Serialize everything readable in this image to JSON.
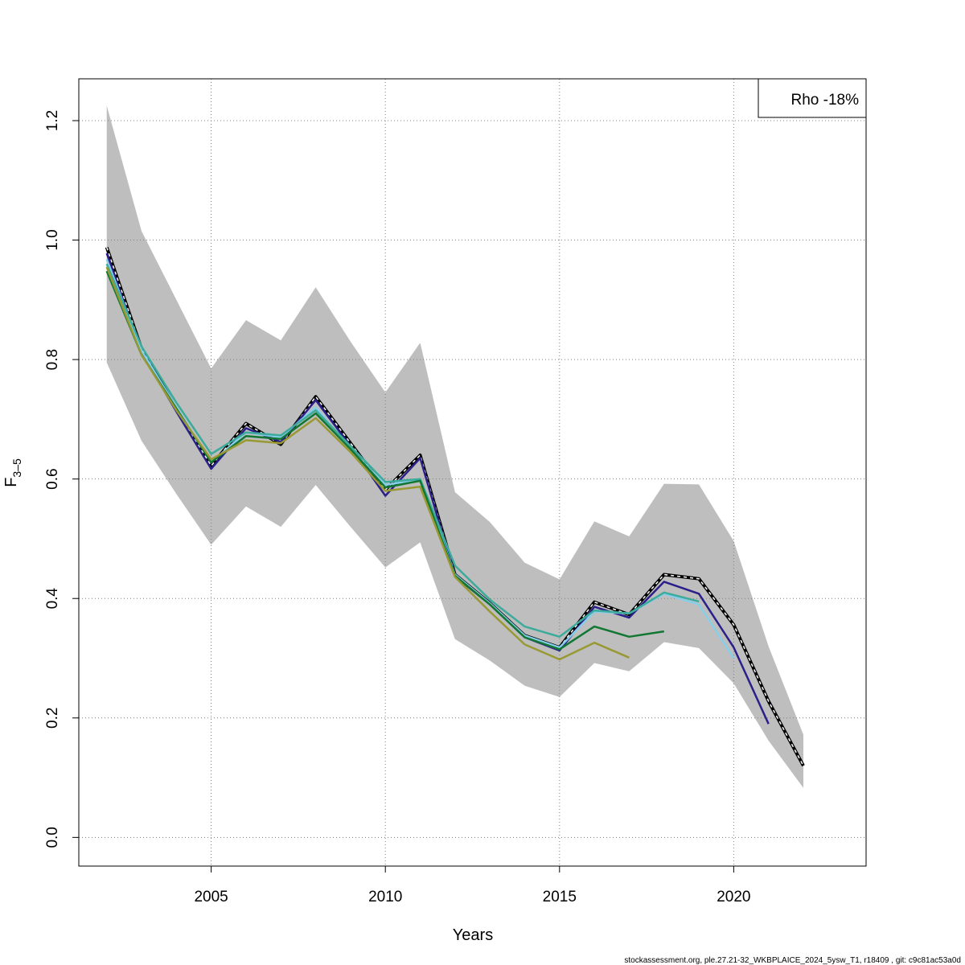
{
  "chart_data": {
    "type": "line",
    "xlabel": "Years",
    "ylabel": "F",
    "ylabel_subscript": "3–5",
    "xlim": [
      2001.2,
      2023.8
    ],
    "ylim": [
      -0.048,
      1.27
    ],
    "x_ticks": [
      2005,
      2010,
      2015,
      2020
    ],
    "y_ticks": [
      0.0,
      0.2,
      0.4,
      0.6,
      0.8,
      1.0,
      1.2
    ],
    "y_tick_labels": [
      "0.0",
      "0.2",
      "0.4",
      "0.6",
      "0.8",
      "1.0",
      "1.2"
    ],
    "grid": true,
    "legend": {
      "placement": "top-right",
      "text": "Rho -18%"
    },
    "footer": "stockassessment.org, ple.27.21-32_WKBPLAICE_2024_5ysw_T1, r18409 , git: c9c81ac53a0d",
    "confidence_band": {
      "color": "#bebebe",
      "x": [
        2002,
        2003,
        2004,
        2005,
        2006,
        2007,
        2008,
        2009,
        2010,
        2011,
        2012,
        2013,
        2014,
        2015,
        2016,
        2017,
        2018,
        2019,
        2020,
        2021,
        2022
      ],
      "upper": [
        1.225,
        1.015,
        0.9,
        0.785,
        0.866,
        0.832,
        0.921,
        0.83,
        0.745,
        0.828,
        0.578,
        0.528,
        0.46,
        0.432,
        0.529,
        0.504,
        0.592,
        0.591,
        0.496,
        0.32,
        0.172
      ],
      "lower": [
        0.795,
        0.664,
        0.575,
        0.49,
        0.554,
        0.52,
        0.59,
        0.52,
        0.452,
        0.494,
        0.332,
        0.296,
        0.254,
        0.235,
        0.292,
        0.278,
        0.327,
        0.317,
        0.258,
        0.162,
        0.083
      ]
    },
    "series": [
      {
        "color": "#000000",
        "dashed": true,
        "highlight": true,
        "x": [
          2002,
          2003,
          2004,
          2005,
          2006,
          2007,
          2008,
          2009,
          2010,
          2011,
          2012,
          2013,
          2014,
          2015,
          2016,
          2017,
          2018,
          2019,
          2020,
          2021,
          2022
        ],
        "values": [
          0.988,
          0.818,
          0.717,
          0.622,
          0.693,
          0.658,
          0.738,
          0.66,
          0.582,
          0.64,
          0.44,
          0.392,
          0.338,
          0.318,
          0.394,
          0.373,
          0.44,
          0.433,
          0.356,
          0.228,
          0.12
        ]
      },
      {
        "color": "#2b1f8a",
        "x": [
          2002,
          2003,
          2004,
          2005,
          2006,
          2007,
          2008,
          2009,
          2010,
          2011,
          2012,
          2013,
          2014,
          2015,
          2016,
          2017,
          2018,
          2019,
          2020,
          2021
        ],
        "values": [
          0.978,
          0.812,
          0.713,
          0.617,
          0.685,
          0.662,
          0.732,
          0.655,
          0.572,
          0.635,
          0.437,
          0.39,
          0.335,
          0.313,
          0.386,
          0.368,
          0.428,
          0.408,
          0.318,
          0.19
        ]
      },
      {
        "color": "#87ceeb",
        "x": [
          2002,
          2003,
          2004,
          2005,
          2006,
          2007,
          2008,
          2009,
          2010,
          2011,
          2012,
          2013,
          2014,
          2015,
          2016,
          2017,
          2018,
          2019,
          2020
        ],
        "values": [
          0.968,
          0.815,
          0.72,
          0.628,
          0.678,
          0.67,
          0.72,
          0.65,
          0.59,
          0.6,
          0.44,
          0.392,
          0.338,
          0.318,
          0.378,
          0.375,
          0.408,
          0.39,
          0.3
        ]
      },
      {
        "color": "#3cab9b",
        "x": [
          2002,
          2003,
          2004,
          2005,
          2006,
          2007,
          2008,
          2009,
          2010,
          2011,
          2012,
          2013,
          2014,
          2015,
          2016,
          2017,
          2018,
          2019
        ],
        "values": [
          0.96,
          0.822,
          0.728,
          0.642,
          0.678,
          0.673,
          0.715,
          0.655,
          0.595,
          0.6,
          0.455,
          0.398,
          0.353,
          0.336,
          0.38,
          0.375,
          0.41,
          0.395
        ]
      },
      {
        "color": "#117733",
        "x": [
          2002,
          2003,
          2004,
          2005,
          2006,
          2007,
          2008,
          2009,
          2010,
          2011,
          2012,
          2013,
          2014,
          2015,
          2016,
          2017,
          2018
        ],
        "values": [
          0.948,
          0.808,
          0.718,
          0.628,
          0.672,
          0.667,
          0.71,
          0.65,
          0.586,
          0.597,
          0.438,
          0.39,
          0.335,
          0.315,
          0.353,
          0.336,
          0.345
        ]
      },
      {
        "color": "#999933",
        "x": [
          2002,
          2003,
          2004,
          2005,
          2006,
          2007,
          2008,
          2009,
          2010,
          2011,
          2012,
          2013,
          2014,
          2015,
          2016,
          2017
        ],
        "values": [
          0.955,
          0.808,
          0.715,
          0.633,
          0.665,
          0.66,
          0.702,
          0.645,
          0.58,
          0.587,
          0.436,
          0.378,
          0.323,
          0.298,
          0.326,
          0.301
        ]
      }
    ]
  }
}
